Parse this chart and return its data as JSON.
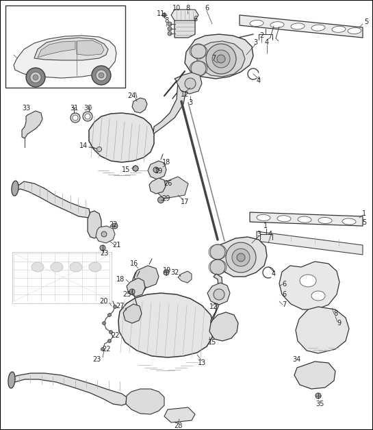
{
  "bg_color": "#ffffff",
  "border_color": "#000000",
  "fig_width": 5.45,
  "fig_height": 6.28,
  "dpi": 100,
  "lc": "#404040",
  "lw_thin": 0.5,
  "lw_med": 0.8,
  "lw_thick": 1.2,
  "fc_light": "#e8e8e8",
  "fc_mid": "#d0d0d0",
  "fc_dark": "#b8b8b8",
  "label_fs": 7.0
}
